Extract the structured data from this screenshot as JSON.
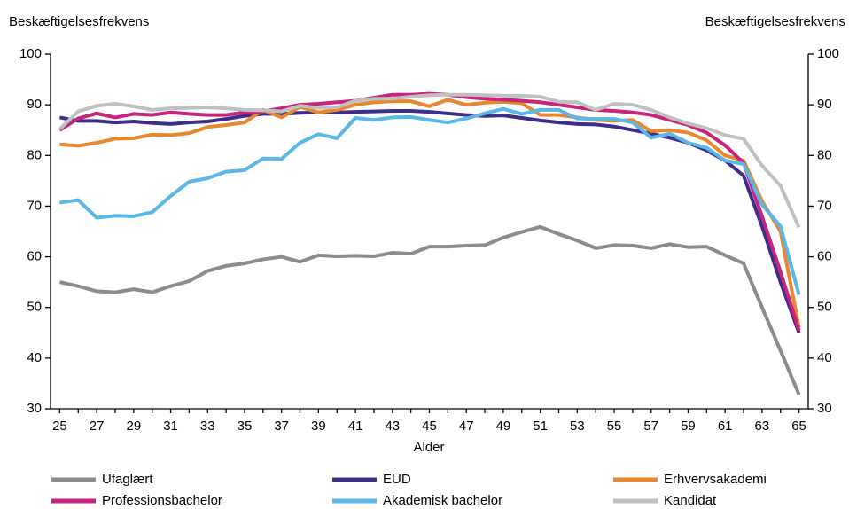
{
  "chart_data": {
    "type": "line",
    "y_label": "Beskæftigelsesfrekvens",
    "y2_label": "Beskæftigelsesfrekvens",
    "x_label": "Alder",
    "x": [
      25,
      26,
      27,
      28,
      29,
      30,
      31,
      32,
      33,
      34,
      35,
      36,
      37,
      38,
      39,
      40,
      41,
      42,
      43,
      44,
      45,
      46,
      47,
      48,
      49,
      50,
      51,
      52,
      53,
      54,
      55,
      56,
      57,
      58,
      59,
      60,
      61,
      62,
      63,
      64,
      65
    ],
    "xlim": [
      24.5,
      65.5
    ],
    "xticks": [
      25,
      27,
      29,
      31,
      33,
      35,
      37,
      39,
      41,
      43,
      45,
      47,
      49,
      51,
      53,
      55,
      57,
      59,
      61,
      63,
      65
    ],
    "ylim": [
      30,
      100
    ],
    "yticks": [
      30,
      40,
      50,
      60,
      70,
      80,
      90,
      100
    ],
    "y2lim": [
      30,
      100
    ],
    "y2ticks": [
      30,
      40,
      50,
      60,
      70,
      80,
      90,
      100
    ],
    "grid": false,
    "legend": "bottom",
    "series": [
      {
        "name": "Ufaglært",
        "color": "#8c8c8c",
        "values": [
          55,
          54.2,
          53.2,
          53,
          53.6,
          53,
          54.2,
          55.2,
          57.2,
          58.2,
          58.7,
          59.5,
          60,
          59,
          60.3,
          60.1,
          60.2,
          60.1,
          60.8,
          60.6,
          62,
          62,
          62.2,
          62.3,
          63.8,
          64.9,
          65.9,
          64.5,
          63.2,
          61.7,
          62.3,
          62.2,
          61.7,
          62.5,
          61.9,
          62,
          60.3,
          58.7,
          50,
          41.5,
          32.8
        ]
      },
      {
        "name": "EUD",
        "color": "#3f2d8c",
        "values": [
          87.5,
          86.8,
          86.8,
          86.5,
          86.7,
          86.4,
          86.2,
          86.5,
          86.7,
          87.2,
          87.8,
          88.2,
          88.2,
          88.4,
          88.5,
          88.5,
          88.6,
          88.7,
          88.8,
          88.8,
          88.6,
          88.3,
          88,
          87.8,
          87.9,
          87.4,
          86.9,
          86.5,
          86.2,
          86.1,
          85.7,
          85,
          84.3,
          83.5,
          82.5,
          81,
          79,
          76,
          66,
          55,
          45
        ]
      },
      {
        "name": "Erhvervsakademi",
        "color": "#e8872b",
        "values": [
          82.2,
          81.9,
          82.5,
          83.3,
          83.4,
          84.1,
          84,
          84.4,
          85.6,
          86,
          86.5,
          89,
          87.5,
          89.6,
          88.5,
          89,
          90,
          90.5,
          90.7,
          90.7,
          89.7,
          91,
          90,
          90.4,
          90.6,
          90.3,
          88,
          88,
          87.5,
          87,
          86.8,
          87,
          84.8,
          85,
          84.5,
          83,
          80,
          79,
          71,
          65,
          46
        ]
      },
      {
        "name": "Professionsbachelor",
        "color": "#c8237d",
        "values": [
          85,
          87.3,
          88.3,
          87.5,
          88.2,
          88,
          88.5,
          88.2,
          88,
          88,
          88.5,
          88.7,
          89.3,
          90,
          90.2,
          90.5,
          90.8,
          91.4,
          92,
          92,
          92.2,
          92,
          91.5,
          91.2,
          91,
          90.8,
          90.5,
          90,
          89.5,
          89,
          88.8,
          88.5,
          88,
          87,
          86,
          84.5,
          82,
          78.5,
          68,
          57,
          45.5
        ]
      },
      {
        "name": "Akademisk bachelor",
        "color": "#5ab7e6",
        "values": [
          70.7,
          71.2,
          67.7,
          68.1,
          68,
          68.8,
          72,
          74.8,
          75.5,
          76.8,
          77.1,
          79.4,
          79.3,
          82.5,
          84.2,
          83.4,
          87.4,
          87,
          87.5,
          87.6,
          87,
          86.5,
          87.3,
          88.3,
          89.2,
          88.2,
          89,
          89,
          87.3,
          87.2,
          87.2,
          86.5,
          83.5,
          84.3,
          82.5,
          81.5,
          79,
          78.3,
          70.3,
          66,
          52.5
        ]
      },
      {
        "name": "Kandidat",
        "color": "#c0c0c0",
        "values": [
          85.2,
          88.7,
          89.8,
          90.2,
          89.7,
          89,
          89.3,
          89.4,
          89.5,
          89.3,
          89,
          88.9,
          88.7,
          89.8,
          89.4,
          89.5,
          90.8,
          91.2,
          91.2,
          91.6,
          91.9,
          92,
          92,
          91.9,
          91.8,
          91.8,
          91.6,
          90.6,
          90.5,
          89,
          90.2,
          90,
          89,
          87.5,
          86.3,
          85.4,
          84,
          83.3,
          78,
          74,
          65.8
        ]
      }
    ]
  }
}
